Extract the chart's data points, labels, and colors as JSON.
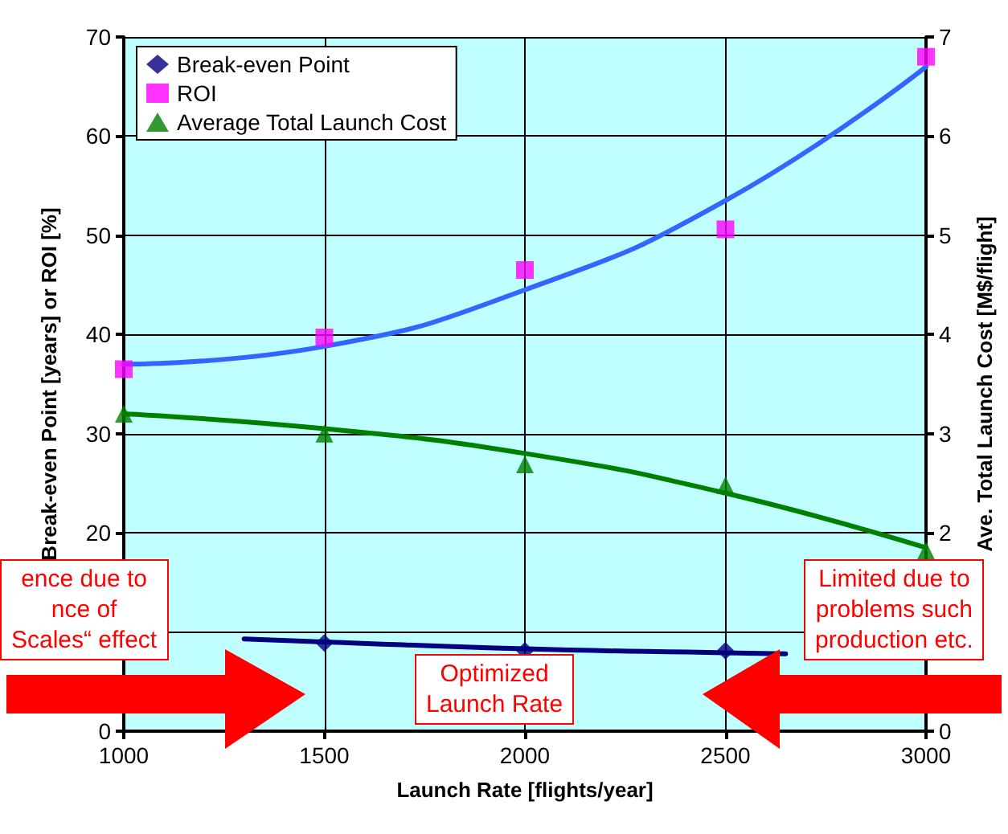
{
  "chart_data": {
    "type": "scatter",
    "xlabel": "Launch Rate [flights/year]",
    "ylabel": "Break-even Point [years] or ROI [%]",
    "y2label": "Ave. Total Launch Cost [M$/flight]",
    "x": [
      1000,
      1500,
      2000,
      2500,
      3000
    ],
    "xlim": [
      1000,
      3000
    ],
    "xticks": [
      1000,
      1500,
      2000,
      2500,
      3000
    ],
    "ylim": [
      0,
      70
    ],
    "yticks": [
      0,
      {
        "value": 10,
        "label": null
      },
      20,
      30,
      40,
      50,
      60,
      70
    ],
    "y2lim": [
      0,
      7
    ],
    "y2ticks": [
      0,
      2,
      3,
      4,
      5,
      6,
      7
    ],
    "grid": true,
    "legend": "top left",
    "series": [
      {
        "name": "Break-even Point",
        "marker": "diamond",
        "color": "#000080",
        "values": [
          null,
          8.9,
          8.1,
          8.1,
          null
        ]
      },
      {
        "name": "ROI",
        "marker": "square",
        "color": "#ff00ff",
        "values": [
          36.5,
          39.7,
          46.5,
          50.6,
          68
        ]
      },
      {
        "name": "Average Total Launch Cost",
        "marker": "triangle",
        "color": "#008000",
        "axis": "y2",
        "values": [
          3.2,
          3.0,
          2.69,
          2.48,
          1.82
        ]
      },
      {
        "type": "line",
        "marker": "none",
        "color": "#000080",
        "x": [
          1300,
          1500,
          2000,
          2500,
          2650
        ],
        "values": [
          9.3,
          9,
          8.3,
          7.9,
          7.8
        ]
      },
      {
        "type": "line",
        "marker": "none",
        "color": "#3366ff",
        "x": [
          1000,
          1500,
          2000,
          2500,
          3000
        ],
        "values": [
          37,
          38.8,
          44.5,
          53.5,
          67
        ]
      },
      {
        "type": "line",
        "marker": "none",
        "color": "#008000",
        "axis": "y2",
        "x": [
          1000,
          1500,
          2000,
          2500,
          3000
        ],
        "values": [
          3.2,
          3.05,
          2.8,
          2.4,
          1.85
        ]
      }
    ],
    "annotations": [
      "ence due to\nnce of\nScales“ effect",
      "Optimized\nLaunch Rate",
      "Limited due to\nproblems such\nproduction etc."
    ]
  }
}
